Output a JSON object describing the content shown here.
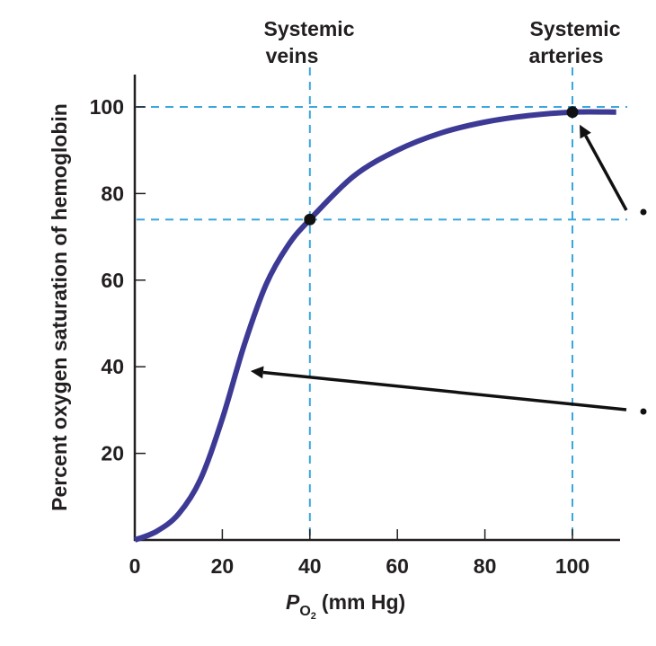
{
  "chart_data": {
    "type": "line",
    "title": "",
    "xlabel": {
      "main": "P",
      "subscript": "O",
      "sub_sub": "2",
      "unit": "(mm Hg)"
    },
    "ylabel": "Percent oxygen saturation of hemoglobin",
    "xlim": [
      0,
      111
    ],
    "ylim": [
      0,
      107
    ],
    "x_ticks": [
      0,
      20,
      40,
      60,
      80,
      100
    ],
    "y_ticks": [
      20,
      40,
      60,
      80,
      100
    ],
    "grid": false,
    "series": [
      {
        "color": "#3d3a96",
        "points": [
          [
            0,
            0
          ],
          [
            5,
            2
          ],
          [
            10,
            6
          ],
          [
            15,
            14
          ],
          [
            20,
            28
          ],
          [
            25,
            45
          ],
          [
            30,
            59
          ],
          [
            35,
            68
          ],
          [
            40,
            74
          ],
          [
            50,
            84
          ],
          [
            60,
            90
          ],
          [
            70,
            94
          ],
          [
            80,
            96.5
          ],
          [
            90,
            98
          ],
          [
            100,
            98.8
          ],
          [
            110,
            98.8
          ]
        ]
      }
    ],
    "reference_lines": {
      "color": "#3aa7dc",
      "vertical": [
        40,
        100
      ],
      "horizontal": [
        74,
        100
      ]
    },
    "marked_points": [
      [
        40,
        74
      ],
      [
        100,
        98.8
      ]
    ],
    "annotations": [
      {
        "text": "Systemic\nveins",
        "line1": "Systemic",
        "line2": "veins",
        "x": 40
      },
      {
        "text": "Systemic\narteries",
        "line1": "Systemic",
        "line2": "arteries",
        "x": 100
      }
    ],
    "pointer_arrows": [
      {
        "target": [
          100,
          98.8
        ]
      },
      {
        "target": [
          24,
          39
        ]
      }
    ]
  }
}
